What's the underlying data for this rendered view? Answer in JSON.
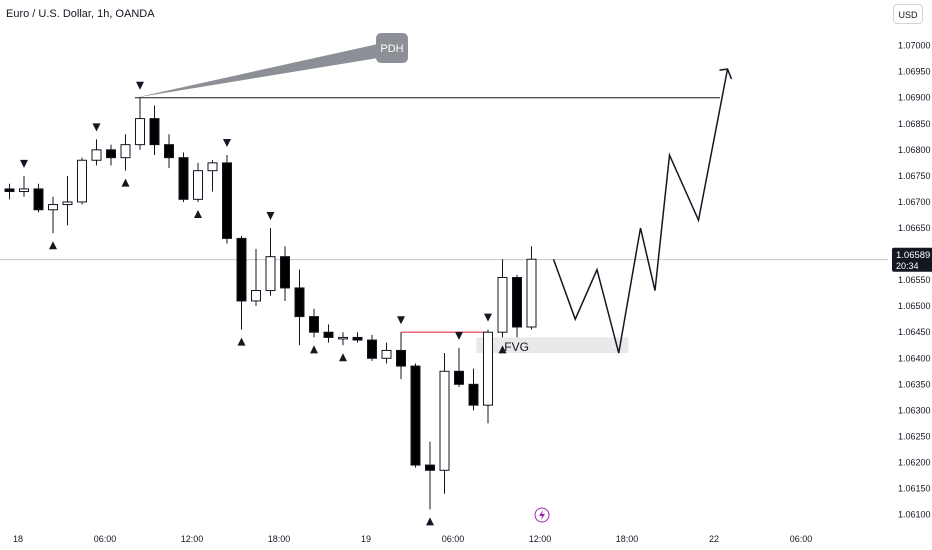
{
  "header": {
    "title": "Euro / U.S. Dollar, 1h, OANDA",
    "currency": "USD"
  },
  "price_label": {
    "price": "1.06589",
    "countdown": "20:34"
  },
  "annotations": {
    "pdh": "PDH",
    "fvg": "FVG"
  },
  "colors": {
    "bull_candle": "#ffffff",
    "bear_candle": "#000000",
    "fvg_line": "#f23645",
    "fvg_zone": "#e9e9e9",
    "pdh_box": "#8c8f96",
    "lightning": "#9c27b0"
  },
  "chart_data": {
    "type": "candlestick",
    "symbol": "Euro / U.S. Dollar",
    "timeframe": "1h",
    "ylim": [
      1.0608,
      1.0703
    ],
    "y_ticks": [
      "1.06100",
      "1.06150",
      "1.06200",
      "1.06250",
      "1.06300",
      "1.06350",
      "1.06400",
      "1.06450",
      "1.06500",
      "1.06550",
      "1.06600",
      "1.06650",
      "1.06700",
      "1.06750",
      "1.06800",
      "1.06850",
      "1.06900",
      "1.06950",
      "1.07000"
    ],
    "x_ticks": [
      {
        "label": "18",
        "i": 0
      },
      {
        "label": "06:00",
        "i": 6
      },
      {
        "label": "12:00",
        "i": 12
      },
      {
        "label": "18:00",
        "i": 18
      },
      {
        "label": "19",
        "i": 24
      },
      {
        "label": "06:00",
        "i": 30
      },
      {
        "label": "12:00",
        "i": 36
      },
      {
        "label": "18:00",
        "i": 42
      },
      {
        "label": "22",
        "i": 48
      },
      {
        "label": "06:00",
        "i": 54
      }
    ],
    "candles": [
      {
        "o": 1.06725,
        "h": 1.06735,
        "l": 1.06705,
        "c": 1.0672
      },
      {
        "o": 1.0672,
        "h": 1.0675,
        "l": 1.0671,
        "c": 1.06725
      },
      {
        "o": 1.06725,
        "h": 1.06735,
        "l": 1.0668,
        "c": 1.06685
      },
      {
        "o": 1.06685,
        "h": 1.0671,
        "l": 1.0664,
        "c": 1.06695
      },
      {
        "o": 1.06695,
        "h": 1.0675,
        "l": 1.06655,
        "c": 1.067
      },
      {
        "o": 1.067,
        "h": 1.06785,
        "l": 1.06695,
        "c": 1.0678
      },
      {
        "o": 1.0678,
        "h": 1.0682,
        "l": 1.0677,
        "c": 1.068
      },
      {
        "o": 1.068,
        "h": 1.0681,
        "l": 1.0677,
        "c": 1.06785
      },
      {
        "o": 1.06785,
        "h": 1.0683,
        "l": 1.0676,
        "c": 1.0681
      },
      {
        "o": 1.0681,
        "h": 1.069,
        "l": 1.068,
        "c": 1.0686
      },
      {
        "o": 1.0686,
        "h": 1.06885,
        "l": 1.0679,
        "c": 1.0681
      },
      {
        "o": 1.0681,
        "h": 1.0683,
        "l": 1.06765,
        "c": 1.06785
      },
      {
        "o": 1.06785,
        "h": 1.06795,
        "l": 1.067,
        "c": 1.06705
      },
      {
        "o": 1.06705,
        "h": 1.06775,
        "l": 1.067,
        "c": 1.0676
      },
      {
        "o": 1.0676,
        "h": 1.0678,
        "l": 1.0672,
        "c": 1.06775
      },
      {
        "o": 1.06775,
        "h": 1.0679,
        "l": 1.0662,
        "c": 1.0663
      },
      {
        "o": 1.0663,
        "h": 1.06635,
        "l": 1.06455,
        "c": 1.0651
      },
      {
        "o": 1.0651,
        "h": 1.0661,
        "l": 1.065,
        "c": 1.0653
      },
      {
        "o": 1.0653,
        "h": 1.0665,
        "l": 1.0652,
        "c": 1.06595
      },
      {
        "o": 1.06595,
        "h": 1.06615,
        "l": 1.0651,
        "c": 1.06535
      },
      {
        "o": 1.06535,
        "h": 1.0657,
        "l": 1.06425,
        "c": 1.0648
      },
      {
        "o": 1.0648,
        "h": 1.06495,
        "l": 1.0644,
        "c": 1.0645
      },
      {
        "o": 1.0645,
        "h": 1.06465,
        "l": 1.0643,
        "c": 1.0644
      },
      {
        "o": 1.0644,
        "h": 1.0645,
        "l": 1.06425,
        "c": 1.0644
      },
      {
        "o": 1.0644,
        "h": 1.0645,
        "l": 1.0643,
        "c": 1.06435
      },
      {
        "o": 1.06435,
        "h": 1.06445,
        "l": 1.06395,
        "c": 1.064
      },
      {
        "o": 1.064,
        "h": 1.0643,
        "l": 1.0639,
        "c": 1.06415
      },
      {
        "o": 1.06415,
        "h": 1.0645,
        "l": 1.0636,
        "c": 1.06385
      },
      {
        "o": 1.06385,
        "h": 1.0639,
        "l": 1.0619,
        "c": 1.06195
      },
      {
        "o": 1.06195,
        "h": 1.0624,
        "l": 1.0611,
        "c": 1.06185
      },
      {
        "o": 1.06185,
        "h": 1.0641,
        "l": 1.0614,
        "c": 1.06375
      },
      {
        "o": 1.06375,
        "h": 1.0642,
        "l": 1.06345,
        "c": 1.0635
      },
      {
        "o": 1.0635,
        "h": 1.0638,
        "l": 1.063,
        "c": 1.0631
      },
      {
        "o": 1.0631,
        "h": 1.06455,
        "l": 1.06275,
        "c": 1.0645
      },
      {
        "o": 1.0645,
        "h": 1.0659,
        "l": 1.0644,
        "c": 1.06555
      },
      {
        "o": 1.06555,
        "h": 1.0656,
        "l": 1.0644,
        "c": 1.0646
      },
      {
        "o": 1.0646,
        "h": 1.06615,
        "l": 1.06455,
        "c": 1.0659
      }
    ],
    "markers_down": [
      1,
      6,
      9,
      15,
      18,
      27,
      31,
      33
    ],
    "markers_up": [
      3,
      8,
      13,
      16,
      21,
      23,
      29,
      34
    ],
    "pdh_price": 1.069,
    "pdh_from_index": 9,
    "fvg_line": {
      "price": 1.0645,
      "from_index": 27,
      "to_index": 33
    },
    "fvg_zone": {
      "low": 1.0641,
      "high": 1.0644,
      "from_index": 32.5,
      "to_index": 43
    },
    "current_price": 1.06589,
    "projection": [
      {
        "i": 37,
        "p": 1.0659
      },
      {
        "i": 38.5,
        "p": 1.06475
      },
      {
        "i": 40,
        "p": 1.0657
      },
      {
        "i": 41.5,
        "p": 1.0641
      },
      {
        "i": 43,
        "p": 1.0665
      },
      {
        "i": 44,
        "p": 1.0653
      },
      {
        "i": 45,
        "p": 1.0679
      },
      {
        "i": 47,
        "p": 1.06665
      },
      {
        "i": 49,
        "p": 1.06955
      }
    ]
  }
}
